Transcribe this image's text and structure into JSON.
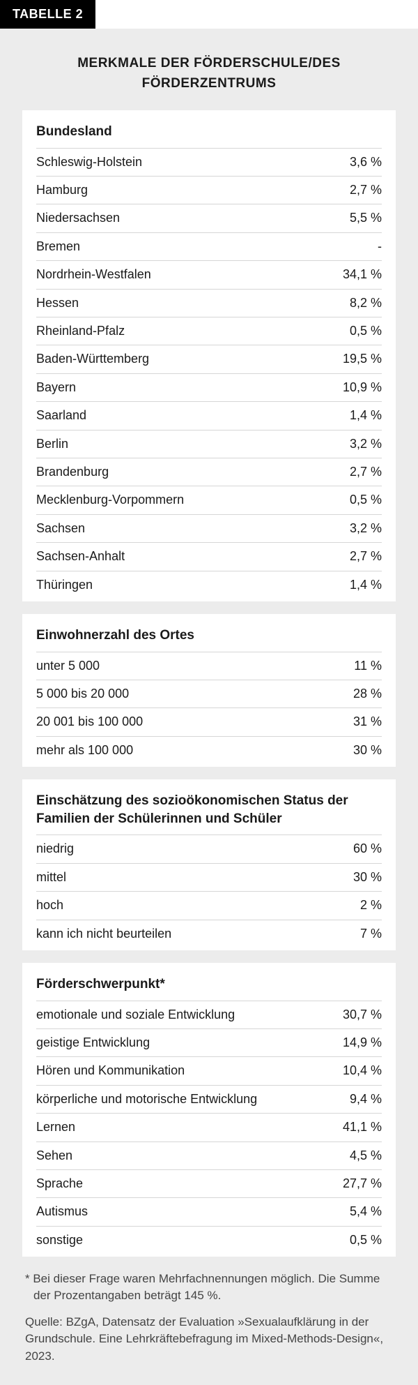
{
  "tab_label": "TABELLE 2",
  "title": "MERKMALE DER FÖRDERSCHULE/DES FÖRDERZENTRUMS",
  "sections": [
    {
      "heading": "Bundesland",
      "rows": [
        {
          "label": "Schleswig-Holstein",
          "value": "3,6 %"
        },
        {
          "label": "Hamburg",
          "value": "2,7 %"
        },
        {
          "label": "Niedersachsen",
          "value": "5,5 %"
        },
        {
          "label": "Bremen",
          "value": "-"
        },
        {
          "label": "Nordrhein-Westfalen",
          "value": "34,1 %"
        },
        {
          "label": "Hessen",
          "value": "8,2 %"
        },
        {
          "label": "Rheinland-Pfalz",
          "value": "0,5 %"
        },
        {
          "label": "Baden-Württemberg",
          "value": "19,5 %"
        },
        {
          "label": "Bayern",
          "value": "10,9 %"
        },
        {
          "label": "Saarland",
          "value": "1,4 %"
        },
        {
          "label": "Berlin",
          "value": "3,2 %"
        },
        {
          "label": "Brandenburg",
          "value": "2,7 %"
        },
        {
          "label": "Mecklenburg-Vorpommern",
          "value": "0,5 %"
        },
        {
          "label": "Sachsen",
          "value": "3,2 %"
        },
        {
          "label": "Sachsen-Anhalt",
          "value": "2,7 %"
        },
        {
          "label": "Thüringen",
          "value": "1,4 %"
        }
      ]
    },
    {
      "heading": "Einwohnerzahl des Ortes",
      "rows": [
        {
          "label": "unter 5 000",
          "value": "11 %"
        },
        {
          "label": "5 000 bis 20 000",
          "value": "28 %"
        },
        {
          "label": "20 001 bis 100 000",
          "value": "31 %"
        },
        {
          "label": "mehr als 100 000",
          "value": "30 %"
        }
      ]
    },
    {
      "heading": "Einschätzung des sozioökonomischen Status der Familien der Schülerinnen und Schüler",
      "rows": [
        {
          "label": "niedrig",
          "value": "60 %"
        },
        {
          "label": "mittel",
          "value": "30 %"
        },
        {
          "label": "hoch",
          "value": "2 %"
        },
        {
          "label": "kann ich nicht beurteilen",
          "value": "7 %"
        }
      ]
    },
    {
      "heading": "Förderschwerpunkt*",
      "rows": [
        {
          "label": "emotionale und soziale Entwicklung",
          "value": "30,7 %"
        },
        {
          "label": "geistige Entwicklung",
          "value": "14,9 %"
        },
        {
          "label": "Hören und Kommunikation",
          "value": "10,4 %"
        },
        {
          "label": "körperliche und motorische Entwicklung",
          "value": "9,4 %"
        },
        {
          "label": "Lernen",
          "value": "41,1 %"
        },
        {
          "label": "Sehen",
          "value": "4,5 %"
        },
        {
          "label": "Sprache",
          "value": "27,7 %"
        },
        {
          "label": "Autismus",
          "value": "5,4 %"
        },
        {
          "label": "sonstige",
          "value": "0,5 %"
        }
      ]
    }
  ],
  "footnote": "* Bei dieser Frage waren Mehrfachnennungen möglich. Die Summe der Prozentangaben beträgt 145 %.",
  "source": "Quelle: BZgA, Datensatz der Evaluation »Sexualaufklärung in der Grundschule. Eine Lehrkräftebefragung im Mixed-Methods-Design«, 2023.",
  "colors": {
    "tab_bg": "#000000",
    "tab_text": "#ffffff",
    "panel_bg": "#ececec",
    "card_bg": "#ffffff",
    "rule": "#d6d6d6",
    "text": "#1a1a1a",
    "muted": "#444444"
  },
  "typography": {
    "title_fontsize_pt": 14,
    "heading_fontsize_pt": 14,
    "row_fontsize_pt": 13,
    "foot_fontsize_pt": 12,
    "font_family": "Helvetica Neue / sans-serif"
  }
}
